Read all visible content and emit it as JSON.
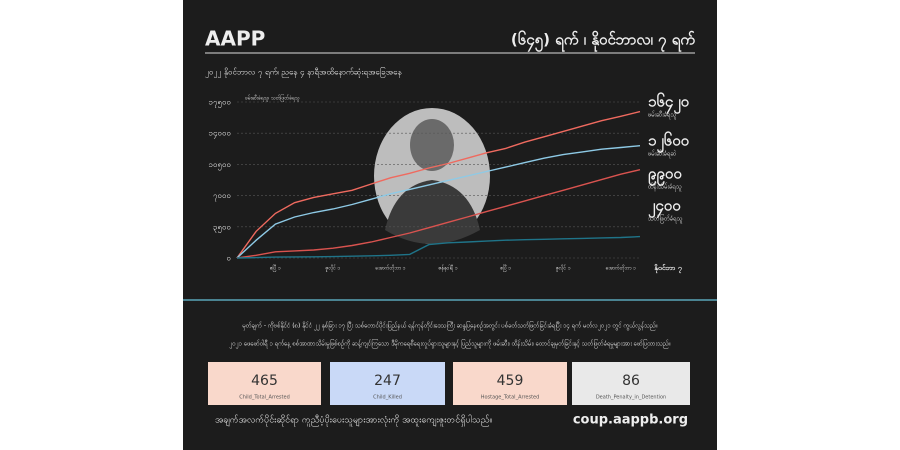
{
  "header": {
    "title": "AAPP",
    "right_title": "(၆၄၅) ရက် ၊ နိုဝင်ဘာလ၊ ၇ ရက်",
    "subtitle": "၂၀၂၂ နိုဝင်ဘာလ ၇ ရက်၊ ညနေ ၄ နာရီအထိနောက်ဆုံးရအခြေအနေ"
  },
  "chart_data": {
    "type": "line",
    "y_label": "ဖမ်းဆီးခံရသူ၊ သတ်ဖြတ်ခံရသူ",
    "categories": [
      null,
      null,
      "ဧပြီ ၁",
      null,
      null,
      "ဇူလိုင် ၁",
      null,
      null,
      "အောက်တိုဘာ ၁",
      null,
      null,
      "ဇန်နဝါရီ ၁",
      null,
      null,
      "ဧပြီ ၁",
      null,
      null,
      "ဇူလိုင် ၁",
      null,
      null,
      "အောက်တိုဘာ ၁",
      "နိုဝင်ဘာ ၇"
    ],
    "ylim": [
      0,
      17500
    ],
    "yticks": [
      {
        "value": 0,
        "label": "၀"
      },
      {
        "value": 3500,
        "label": "၃၅၀၀"
      },
      {
        "value": 7000,
        "label": "၇၀၀၀"
      },
      {
        "value": 10500,
        "label": "၁၀၅၀၀"
      },
      {
        "value": 14000,
        "label": "၁၄၀၀၀"
      },
      {
        "value": 17500,
        "label": "၁၇၅၀၀"
      }
    ],
    "grid": true,
    "series": [
      {
        "name": "ဖမ်းဆီးခံရသူ",
        "color": "#ef6a5f",
        "values": [
          0,
          3000,
          5000,
          6200,
          6800,
          7200,
          7600,
          8300,
          9000,
          9500,
          10100,
          10600,
          11200,
          11800,
          12300,
          13000,
          13600,
          14200,
          14800,
          15400,
          15900,
          16420
        ],
        "value_labels": [
          null,
          null,
          null,
          null,
          null,
          null,
          null,
          null,
          null,
          null,
          null,
          null,
          null,
          null,
          null,
          null,
          null,
          null,
          null,
          null,
          null,
          "၁၆၄၂၀"
        ]
      },
      {
        "name": "ဖမ်းဆီးခံရဆဲ",
        "color": "#8ecae6",
        "values": [
          0,
          2000,
          3800,
          4600,
          5100,
          5500,
          6000,
          6600,
          7200,
          7700,
          8200,
          8700,
          9200,
          9700,
          10200,
          10700,
          11200,
          11600,
          11900,
          12200,
          12400,
          12600
        ],
        "value_labels": [
          null,
          null,
          null,
          null,
          null,
          null,
          null,
          null,
          null,
          null,
          null,
          null,
          null,
          null,
          null,
          null,
          null,
          null,
          null,
          null,
          null,
          "၁၂၆၀၀"
        ]
      },
      {
        "name": "ထိန်းသိမ်းခံရသူ",
        "color": "#d9534f",
        "values": [
          0,
          300,
          700,
          800,
          900,
          1100,
          1400,
          1800,
          2300,
          2800,
          3400,
          4000,
          4600,
          5200,
          5800,
          6400,
          7000,
          7600,
          8200,
          8800,
          9400,
          9900
        ],
        "value_labels": [
          null,
          null,
          null,
          null,
          null,
          null,
          null,
          null,
          null,
          null,
          null,
          null,
          null,
          null,
          null,
          null,
          null,
          null,
          null,
          null,
          null,
          "၉၉၀၀"
        ]
      },
      {
        "name": "သတ်ဖြတ်ခံရသူ",
        "color": "#1f7489",
        "values": [
          0,
          50,
          100,
          120,
          140,
          160,
          200,
          250,
          300,
          400,
          1500,
          1700,
          1800,
          1900,
          2000,
          2050,
          2100,
          2150,
          2200,
          2250,
          2300,
          2400
        ],
        "value_labels": [
          null,
          null,
          null,
          null,
          null,
          null,
          null,
          null,
          null,
          null,
          null,
          null,
          null,
          null,
          null,
          null,
          null,
          null,
          null,
          null,
          null,
          "၂၄၀၀"
        ]
      }
    ]
  },
  "notes": [
    "မှတ်ချက် - ကိုဗစ်နိုင်ငံ (၈) နိုင်ငံ ၂၂ နှစ်ခြား ၁၇ ပြီး သစ်တောင်ပိုင်းပြည်နယ် ရန်ကုန်တိုင်းဒေသကြီး ဆန္ဒပြနေစဉ်အတွင်း ပစ်ခတ်သတ်ဖြတ်ခြင်းခံရပြီး ၁၄ ရက် မတ်လ၂၀၂၁ တွင် ကွယ်လွန်သည်။",
    "၂၀၂၁ ဖေဖော်ဝါရီ ၁ ရက်နေ့ စစ်အာဏာသိမ်းမှုဖြစ်စဉ်ကို ဆန့်ကျင်ကြသော ဒီမိုကရေစီရေးလှုပ်ရှားသူများနှင့် ပြည်သူများကို ဖမ်းဆီး၊ ထိန်းသိမ်း၊ ထောင်ချမှတ်ခြင်းနှင့် သတ်ဖြတ်ခံရမှုများအား ဖော်ပြထားသည်။"
  ],
  "stats": [
    {
      "value": 465,
      "label": "Child_Total_Arrested"
    },
    {
      "value": 247,
      "label": "Child_Killed"
    },
    {
      "value": 459,
      "label": "Hostage_Total_Arrested"
    },
    {
      "value": 86,
      "label": "Death_Penalty_in_Detention"
    }
  ],
  "footer": {
    "quote": "အချက်အလက်ပိုင်းဆိုင်ရာ ကူညီပံ့ပိုးပေးသူများအားလုံးကို အထူးကျေးဇူးတင်ရှိပါသည်။",
    "url": "coup.aappb.org"
  }
}
